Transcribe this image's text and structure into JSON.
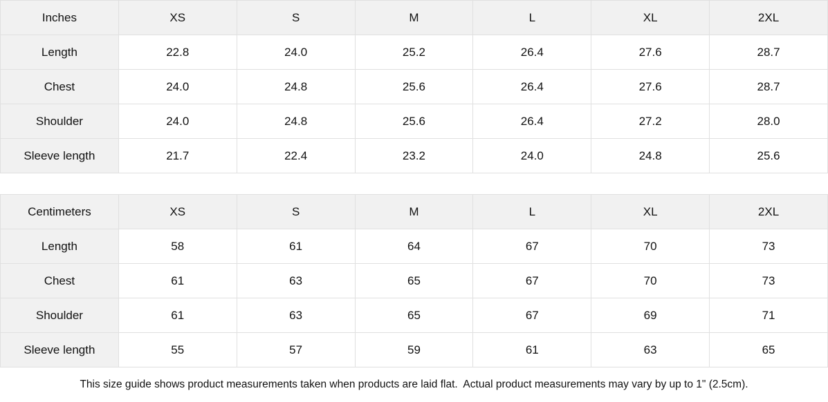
{
  "colors": {
    "header_bg": "#f1f1f1",
    "border": "#e0e0e0",
    "text": "#111111",
    "background": "#ffffff"
  },
  "tables": [
    {
      "unit_label": "Inches",
      "size_headers": [
        "XS",
        "S",
        "M",
        "L",
        "XL",
        "2XL"
      ],
      "rows": [
        {
          "label": "Length",
          "values": [
            "22.8",
            "24.0",
            "25.2",
            "26.4",
            "27.6",
            "28.7"
          ]
        },
        {
          "label": "Chest",
          "values": [
            "24.0",
            "24.8",
            "25.6",
            "26.4",
            "27.6",
            "28.7"
          ]
        },
        {
          "label": "Shoulder",
          "values": [
            "24.0",
            "24.8",
            "25.6",
            "26.4",
            "27.2",
            "28.0"
          ]
        },
        {
          "label": "Sleeve length",
          "values": [
            "21.7",
            "22.4",
            "23.2",
            "24.0",
            "24.8",
            "25.6"
          ]
        }
      ]
    },
    {
      "unit_label": "Centimeters",
      "size_headers": [
        "XS",
        "S",
        "M",
        "L",
        "XL",
        "2XL"
      ],
      "rows": [
        {
          "label": "Length",
          "values": [
            "58",
            "61",
            "64",
            "67",
            "70",
            "73"
          ]
        },
        {
          "label": "Chest",
          "values": [
            "61",
            "63",
            "65",
            "67",
            "70",
            "73"
          ]
        },
        {
          "label": "Shoulder",
          "values": [
            "61",
            "63",
            "65",
            "67",
            "69",
            "71"
          ]
        },
        {
          "label": "Sleeve length",
          "values": [
            "55",
            "57",
            "59",
            "61",
            "63",
            "65"
          ]
        }
      ]
    }
  ],
  "footer": {
    "note": "This size guide shows product measurements taken when products are laid flat.  Actual product measurements may vary by up to 1\" (2.5cm)."
  }
}
